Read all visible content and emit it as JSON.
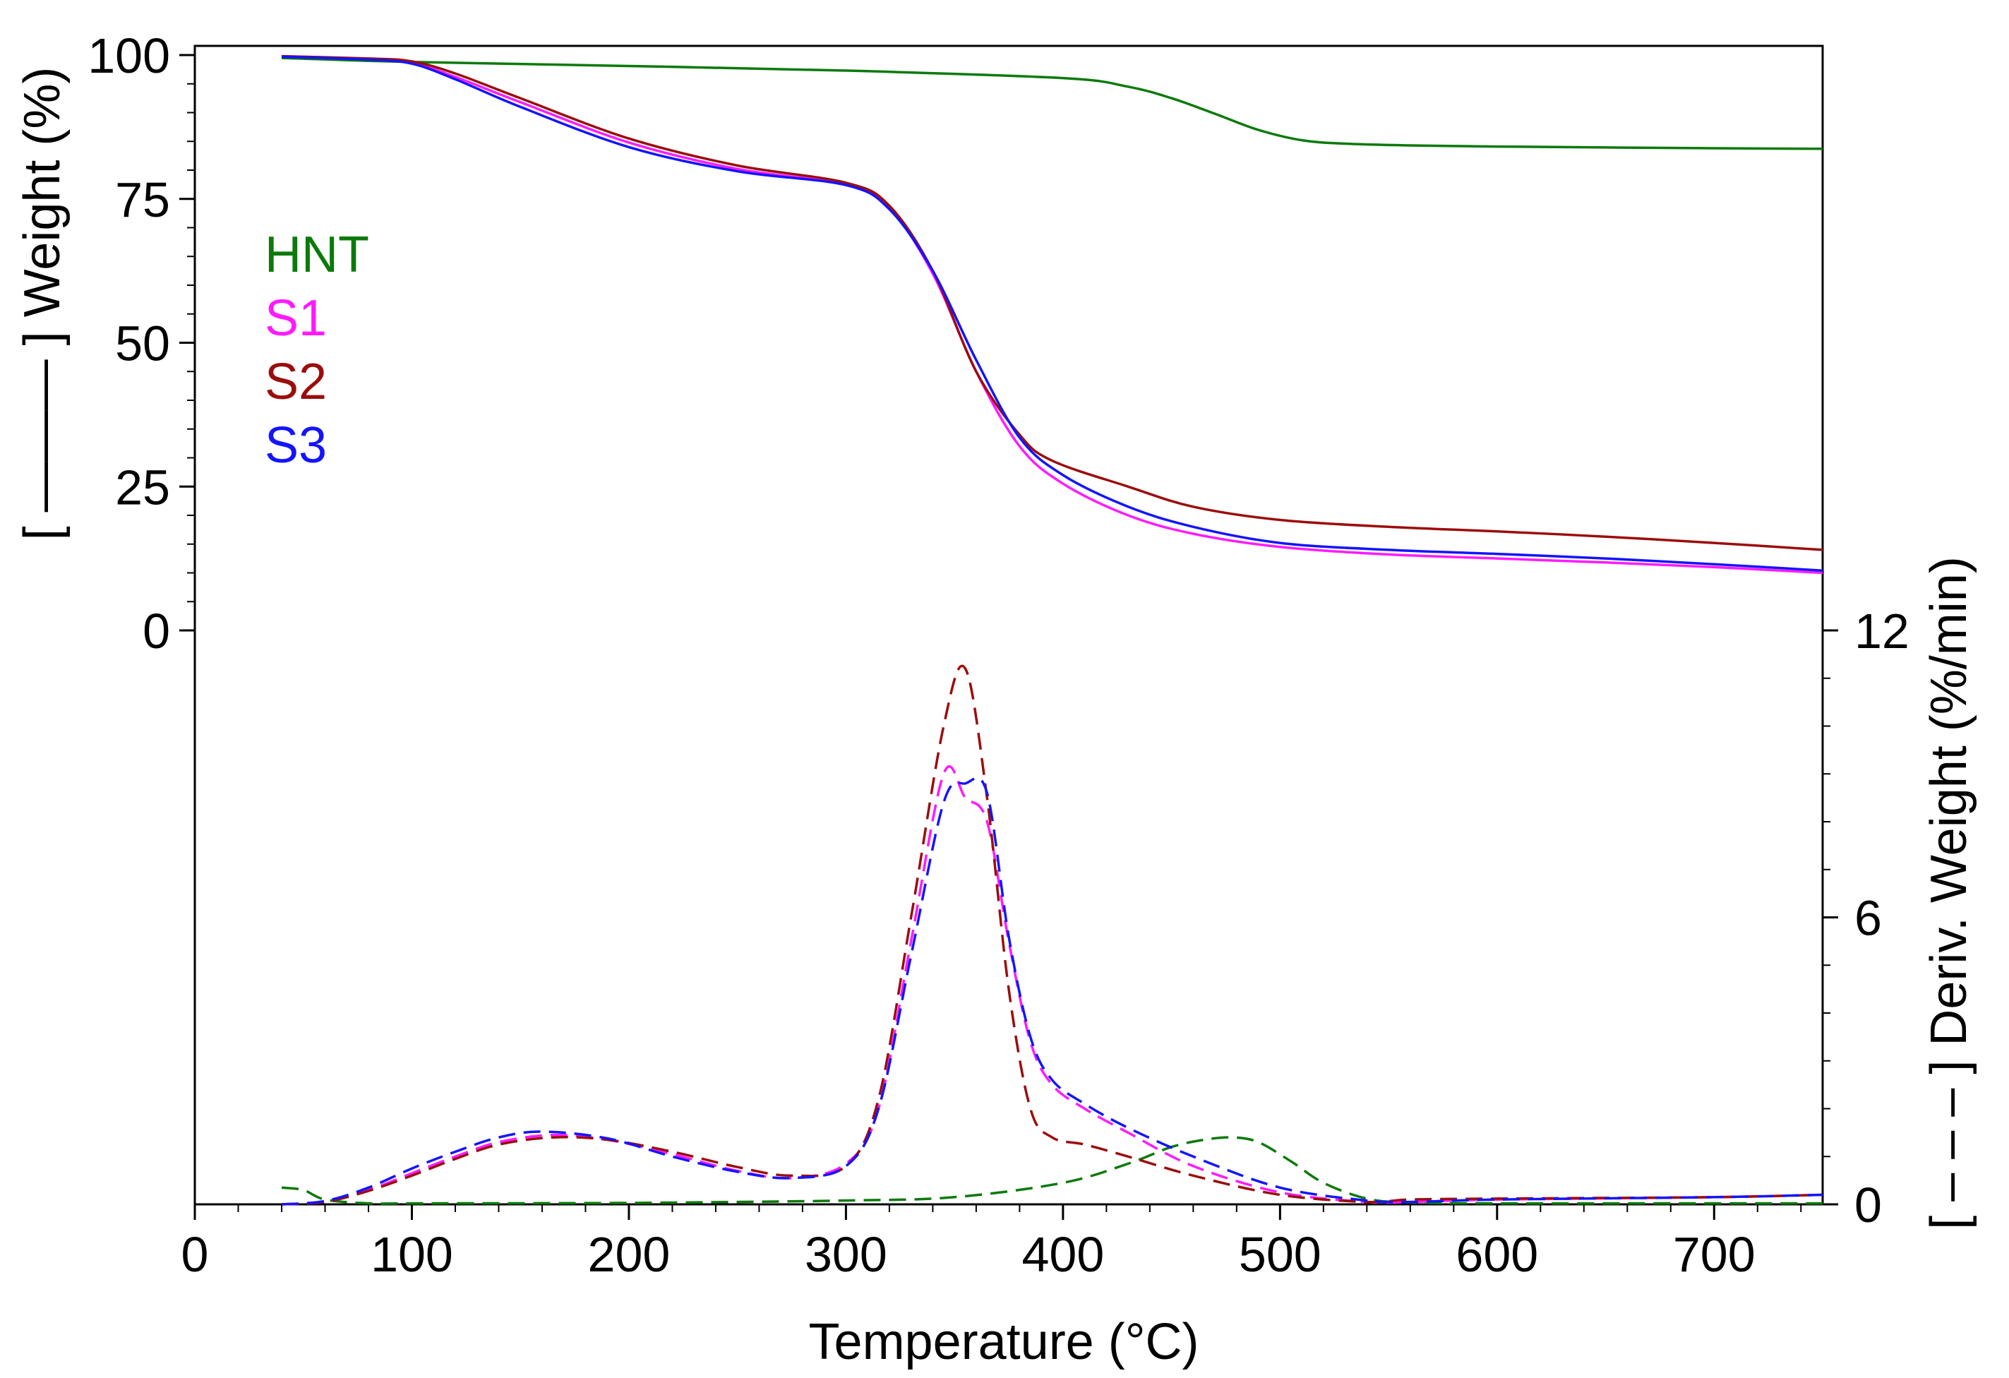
{
  "chart_data": {
    "type": "line",
    "title": "",
    "xlabel": "Temperature (°C)",
    "ylabel_left": "[ ——— ] Weight (%)",
    "ylabel_right": "[ – – – ] Deriv. Weight (%/min)",
    "xlim": [
      0,
      750
    ],
    "x_ticks": [
      0,
      100,
      200,
      300,
      400,
      500,
      600,
      700
    ],
    "x_tick_labels": [
      "0",
      "100",
      "200",
      "300",
      "400",
      "500",
      "600",
      "700"
    ],
    "y_left_ticks": [
      0,
      25,
      50,
      75,
      100
    ],
    "y_left_tick_labels": [
      "0",
      "25",
      "50",
      "75",
      "100"
    ],
    "y_right_ticks": [
      0,
      6,
      12
    ],
    "y_right_tick_labels": [
      "0",
      "6",
      "12"
    ],
    "legend": [
      "HNT",
      "S1",
      "S2",
      "S3"
    ],
    "legend_placement": "upper-left",
    "series": [
      {
        "name": "HNT",
        "color": "#0b7a0b",
        "quantity": "weight",
        "axis": "left",
        "style": "solid",
        "x": [
          40,
          100,
          200,
          300,
          400,
          430,
          450,
          470,
          490,
          510,
          530,
          560,
          600,
          700,
          750
        ],
        "y": [
          99.5,
          98.8,
          98.1,
          97.3,
          96.0,
          94.5,
          92.5,
          89.8,
          87.0,
          85.2,
          84.6,
          84.3,
          84.1,
          83.8,
          83.7
        ]
      },
      {
        "name": "S1",
        "color": "#ff1aff",
        "quantity": "weight",
        "axis": "left",
        "style": "solid",
        "x": [
          40,
          80,
          100,
          120,
          150,
          200,
          250,
          300,
          320,
          340,
          360,
          380,
          400,
          430,
          460,
          500,
          550,
          600,
          650,
          700,
          750
        ],
        "y": [
          99.8,
          99.3,
          98.7,
          96.2,
          91.8,
          84.8,
          80.2,
          77.5,
          73.5,
          62.0,
          45.0,
          32.0,
          25.5,
          20.0,
          16.8,
          14.5,
          13.2,
          12.5,
          11.8,
          11.0,
          10.0
        ]
      },
      {
        "name": "S2",
        "color": "#9b0d0d",
        "quantity": "weight",
        "axis": "left",
        "style": "solid",
        "x": [
          40,
          80,
          100,
          120,
          150,
          200,
          250,
          300,
          320,
          340,
          360,
          380,
          395,
          430,
          460,
          500,
          550,
          600,
          650,
          700,
          750
        ],
        "y": [
          99.8,
          99.4,
          98.9,
          96.8,
          92.5,
          85.5,
          80.8,
          77.8,
          73.8,
          62.5,
          45.0,
          34.0,
          29.5,
          25.0,
          21.5,
          19.2,
          18.0,
          17.2,
          16.3,
          15.2,
          14.0
        ]
      },
      {
        "name": "S3",
        "color": "#1414ff",
        "quantity": "weight",
        "axis": "left",
        "style": "solid",
        "x": [
          40,
          80,
          100,
          120,
          150,
          200,
          250,
          300,
          320,
          340,
          360,
          380,
          400,
          430,
          460,
          500,
          550,
          600,
          650,
          700,
          750
        ],
        "y": [
          99.7,
          99.2,
          98.5,
          95.8,
          91.0,
          84.0,
          79.8,
          77.4,
          73.2,
          62.5,
          47.0,
          33.5,
          27.0,
          21.5,
          18.0,
          15.2,
          14.0,
          13.3,
          12.5,
          11.5,
          10.4
        ]
      },
      {
        "name": "HNT",
        "color": "#0b7a0b",
        "quantity": "derivative",
        "axis": "right",
        "style": "dashed",
        "x": [
          40,
          50,
          60,
          80,
          100,
          200,
          300,
          350,
          400,
          430,
          450,
          465,
          478,
          490,
          505,
          520,
          540,
          560,
          600,
          700,
          750
        ],
        "y": [
          0.35,
          0.3,
          0.1,
          0.02,
          0.02,
          0.03,
          0.08,
          0.15,
          0.45,
          0.85,
          1.2,
          1.35,
          1.4,
          1.3,
          0.9,
          0.45,
          0.12,
          0.04,
          0.02,
          0.02,
          0.02
        ]
      },
      {
        "name": "S1",
        "color": "#ff1aff",
        "quantity": "derivative",
        "axis": "right",
        "style": "dashed",
        "x": [
          40,
          60,
          80,
          100,
          120,
          140,
          165,
          190,
          220,
          250,
          275,
          300,
          315,
          330,
          345,
          355,
          365,
          375,
          385,
          395,
          410,
          430,
          460,
          500,
          540,
          560,
          600,
          700,
          750
        ],
        "y": [
          0.0,
          0.06,
          0.3,
          0.65,
          1.0,
          1.3,
          1.45,
          1.35,
          1.05,
          0.7,
          0.55,
          0.85,
          2.0,
          5.5,
          9.0,
          8.5,
          8.0,
          5.5,
          3.4,
          2.5,
          2.0,
          1.5,
          0.8,
          0.25,
          0.05,
          0.05,
          0.1,
          0.15,
          0.2
        ]
      },
      {
        "name": "S2",
        "color": "#9b0d0d",
        "quantity": "derivative",
        "axis": "right",
        "style": "dashed",
        "x": [
          40,
          60,
          80,
          100,
          120,
          140,
          165,
          190,
          220,
          250,
          275,
          300,
          315,
          330,
          345,
          355,
          365,
          375,
          385,
          395,
          410,
          430,
          460,
          500,
          540,
          560,
          600,
          700,
          750
        ],
        "y": [
          0.0,
          0.05,
          0.28,
          0.6,
          0.95,
          1.25,
          1.4,
          1.35,
          1.1,
          0.78,
          0.6,
          0.8,
          2.2,
          6.0,
          10.0,
          11.2,
          8.5,
          4.5,
          2.0,
          1.4,
          1.25,
          1.0,
          0.6,
          0.2,
          0.05,
          0.1,
          0.12,
          0.15,
          0.2
        ]
      },
      {
        "name": "S3",
        "color": "#1414ff",
        "quantity": "derivative",
        "axis": "right",
        "style": "dashed",
        "x": [
          40,
          60,
          80,
          100,
          120,
          140,
          160,
          190,
          220,
          250,
          275,
          300,
          315,
          330,
          345,
          355,
          365,
          375,
          385,
          395,
          410,
          430,
          460,
          500,
          540,
          560,
          600,
          700,
          750
        ],
        "y": [
          0.0,
          0.07,
          0.35,
          0.75,
          1.1,
          1.4,
          1.52,
          1.38,
          1.0,
          0.68,
          0.55,
          0.8,
          2.0,
          5.2,
          8.4,
          8.8,
          8.6,
          5.6,
          3.5,
          2.6,
          2.1,
          1.6,
          1.0,
          0.35,
          0.08,
          0.05,
          0.1,
          0.15,
          0.2
        ]
      }
    ]
  }
}
